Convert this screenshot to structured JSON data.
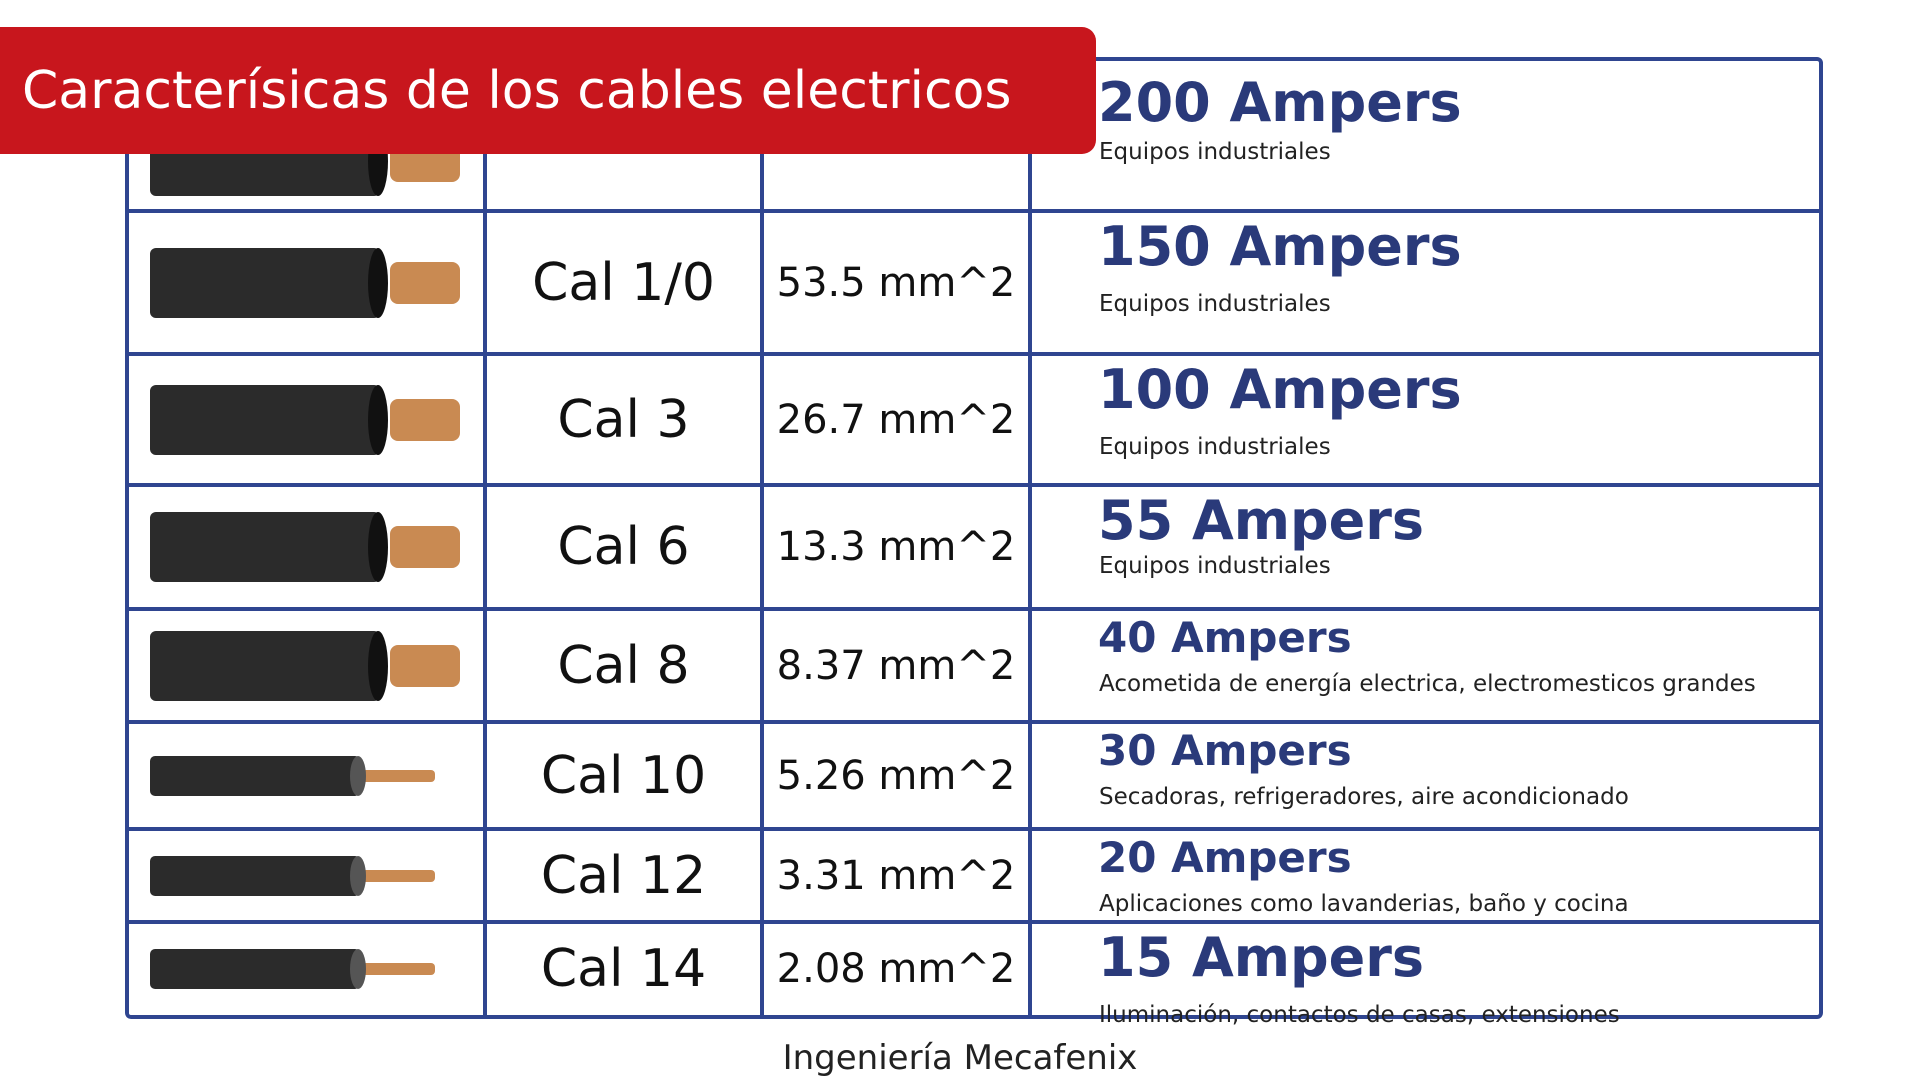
{
  "header": {
    "title": "Caracterísicas de los cables electricos"
  },
  "table": {
    "rows": [
      {
        "amps": "200 Ampers",
        "use": "Equipos industriales"
      },
      {
        "gauge": "Cal 1/0",
        "area": "53.5 mm^2",
        "amps": "150 Ampers",
        "use": "Equipos industriales"
      },
      {
        "gauge": "Cal 3",
        "area": "26.7 mm^2",
        "amps": "100 Ampers",
        "use": "Equipos industriales"
      },
      {
        "gauge": "Cal 6",
        "area": "13.3 mm^2",
        "amps": "55 Ampers",
        "use": "Equipos industriales"
      },
      {
        "gauge": "Cal 8",
        "area": "8.37 mm^2",
        "amps": "40 Ampers",
        "use": "Acometida de energía electrica, electromesticos grandes"
      },
      {
        "gauge": "Cal 10",
        "area": "5.26 mm^2",
        "amps": "30 Ampers",
        "use": "Secadoras, refrigeradores, aire acondicionado"
      },
      {
        "gauge": "Cal 12",
        "area": "3.31 mm^2",
        "amps": "20 Ampers",
        "use": "Aplicaciones como lavanderias, baño y cocina"
      },
      {
        "gauge": "Cal 14",
        "area": "2.08 mm^2",
        "amps": "15 Ampers",
        "use": "Iluminación,  contactos de casas, extensiones"
      }
    ]
  },
  "footer": {
    "text": "Ingeniería Mecafenix"
  }
}
